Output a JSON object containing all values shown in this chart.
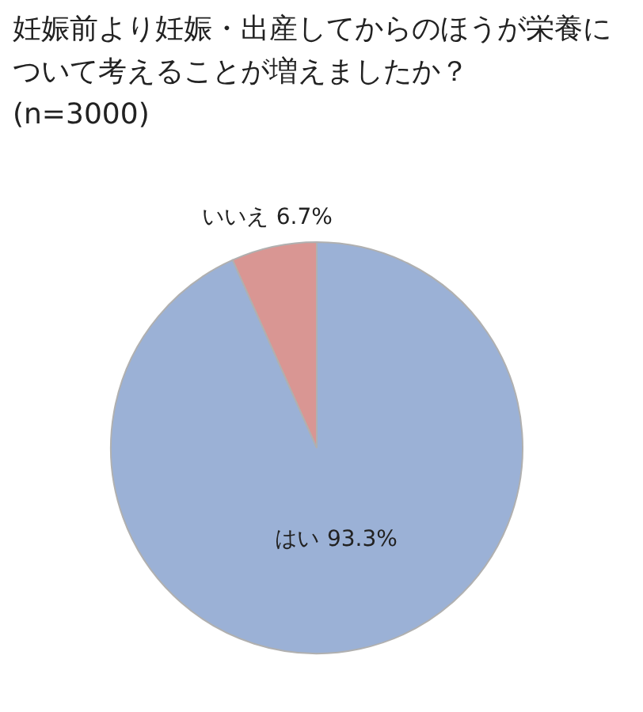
{
  "chart_data": {
    "type": "pie",
    "title": "妊娠前より妊娠・出産してからのほうが栄養について考えることが増えましたか？",
    "subtitle": "(n=3000)",
    "categories": [
      "はい",
      "いいえ"
    ],
    "values": [
      93.3,
      6.7
    ],
    "colors": [
      "#9bb1d6",
      "#d99693"
    ],
    "value_labels": [
      "93.3%",
      "6.7%"
    ]
  }
}
